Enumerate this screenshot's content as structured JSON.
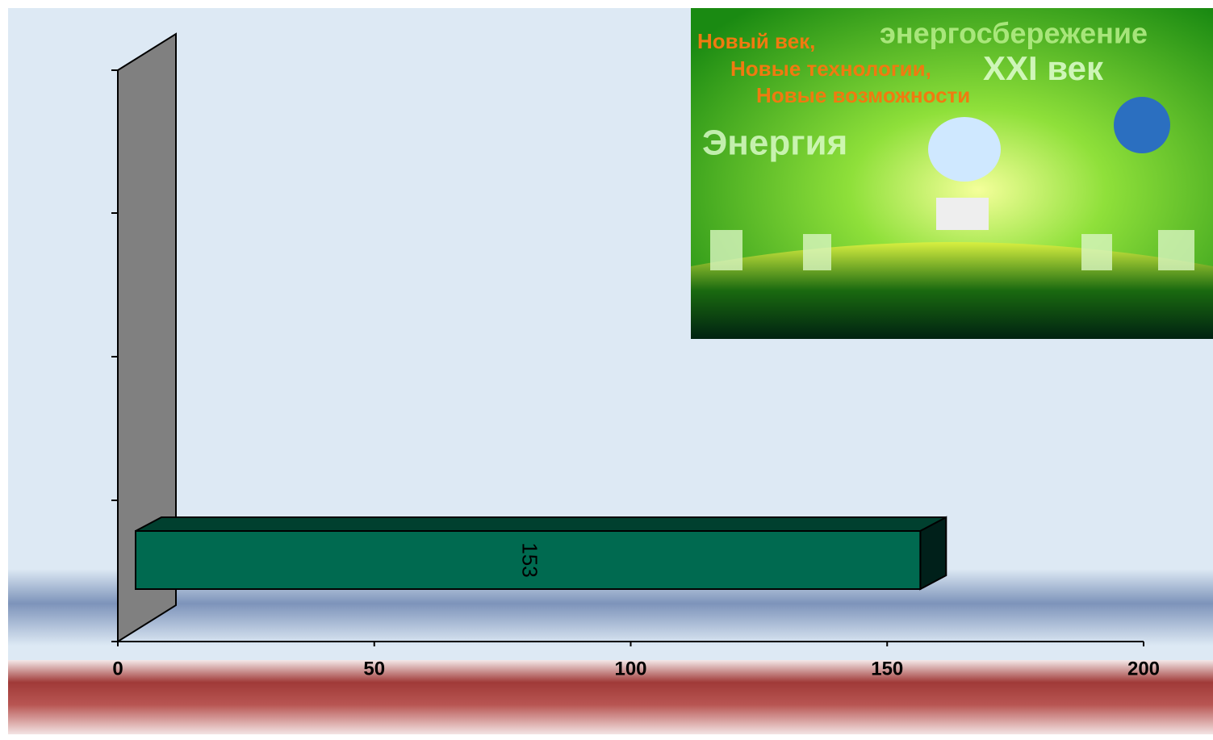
{
  "chart_data": {
    "type": "bar",
    "orientation": "horizontal",
    "categories": [
      null
    ],
    "values": [
      153
    ],
    "color": "#006a50",
    "xlim": [
      0,
      200
    ],
    "xticks": [
      0,
      50,
      100,
      150,
      200
    ],
    "banner": {
      "lines": [
        "Новый век,",
        "Новые технологии,",
        "Новые возможности",
        "энергосбережение",
        "XXI век",
        "Энергия"
      ]
    }
  }
}
